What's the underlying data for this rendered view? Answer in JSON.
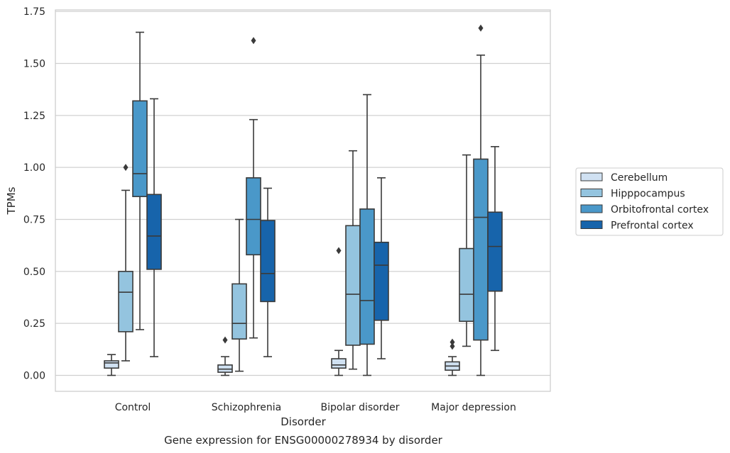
{
  "chart_data": {
    "type": "box",
    "title": "Gene expression for ENSG00000278934 by disorder",
    "xlabel": "Disorder",
    "ylabel": "TPMs",
    "ylim": [
      -0.08,
      1.75
    ],
    "yticks": [
      "0.00",
      "0.25",
      "0.50",
      "0.75",
      "1.00",
      "1.25",
      "1.50",
      "1.75"
    ],
    "grid": "horizontal",
    "legend_position": "right",
    "categories": [
      "Control",
      "Schizophrenia",
      "Bipolar disorder",
      "Major depression"
    ],
    "series": [
      {
        "name": "Cerebellum",
        "color": "#d0e1f2",
        "boxes": [
          {
            "whisker_low": 0.0,
            "q1": 0.035,
            "median": 0.06,
            "q3": 0.07,
            "whisker_high": 0.1,
            "outliers": []
          },
          {
            "whisker_low": 0.0,
            "q1": 0.015,
            "median": 0.03,
            "q3": 0.05,
            "whisker_high": 0.09,
            "outliers": [
              0.17
            ]
          },
          {
            "whisker_low": 0.0,
            "q1": 0.035,
            "median": 0.05,
            "q3": 0.08,
            "whisker_high": 0.12,
            "outliers": [
              0.6
            ]
          },
          {
            "whisker_low": 0.0,
            "q1": 0.025,
            "median": 0.045,
            "q3": 0.065,
            "whisker_high": 0.09,
            "outliers": [
              0.14,
              0.16
            ]
          }
        ]
      },
      {
        "name": "Hipppocampus",
        "color": "#94c4df",
        "boxes": [
          {
            "whisker_low": 0.07,
            "q1": 0.21,
            "median": 0.4,
            "q3": 0.5,
            "whisker_high": 0.89,
            "outliers": [
              1.0
            ]
          },
          {
            "whisker_low": 0.02,
            "q1": 0.175,
            "median": 0.25,
            "q3": 0.44,
            "whisker_high": 0.75,
            "outliers": []
          },
          {
            "whisker_low": 0.03,
            "q1": 0.145,
            "median": 0.39,
            "q3": 0.72,
            "whisker_high": 1.08,
            "outliers": []
          },
          {
            "whisker_low": 0.14,
            "q1": 0.26,
            "median": 0.39,
            "q3": 0.61,
            "whisker_high": 1.06,
            "outliers": []
          }
        ]
      },
      {
        "name": "Orbitofrontal cortex",
        "color": "#4a98c9",
        "boxes": [
          {
            "whisker_low": 0.22,
            "q1": 0.86,
            "median": 0.97,
            "q3": 1.32,
            "whisker_high": 1.65,
            "outliers": []
          },
          {
            "whisker_low": 0.18,
            "q1": 0.58,
            "median": 0.75,
            "q3": 0.95,
            "whisker_high": 1.23,
            "outliers": [
              1.61
            ]
          },
          {
            "whisker_low": 0.0,
            "q1": 0.15,
            "median": 0.36,
            "q3": 0.8,
            "whisker_high": 1.35,
            "outliers": []
          },
          {
            "whisker_low": 0.0,
            "q1": 0.17,
            "median": 0.76,
            "q3": 1.04,
            "whisker_high": 1.54,
            "outliers": [
              1.67
            ]
          }
        ]
      },
      {
        "name": "Prefrontal cortex",
        "color": "#1764ab",
        "boxes": [
          {
            "whisker_low": 0.09,
            "q1": 0.51,
            "median": 0.67,
            "q3": 0.87,
            "whisker_high": 1.33,
            "outliers": []
          },
          {
            "whisker_low": 0.09,
            "q1": 0.355,
            "median": 0.49,
            "q3": 0.745,
            "whisker_high": 0.9,
            "outliers": []
          },
          {
            "whisker_low": 0.08,
            "q1": 0.265,
            "median": 0.53,
            "q3": 0.64,
            "whisker_high": 0.95,
            "outliers": []
          },
          {
            "whisker_low": 0.12,
            "q1": 0.405,
            "median": 0.62,
            "q3": 0.785,
            "whisker_high": 1.1,
            "outliers": []
          }
        ]
      }
    ]
  }
}
